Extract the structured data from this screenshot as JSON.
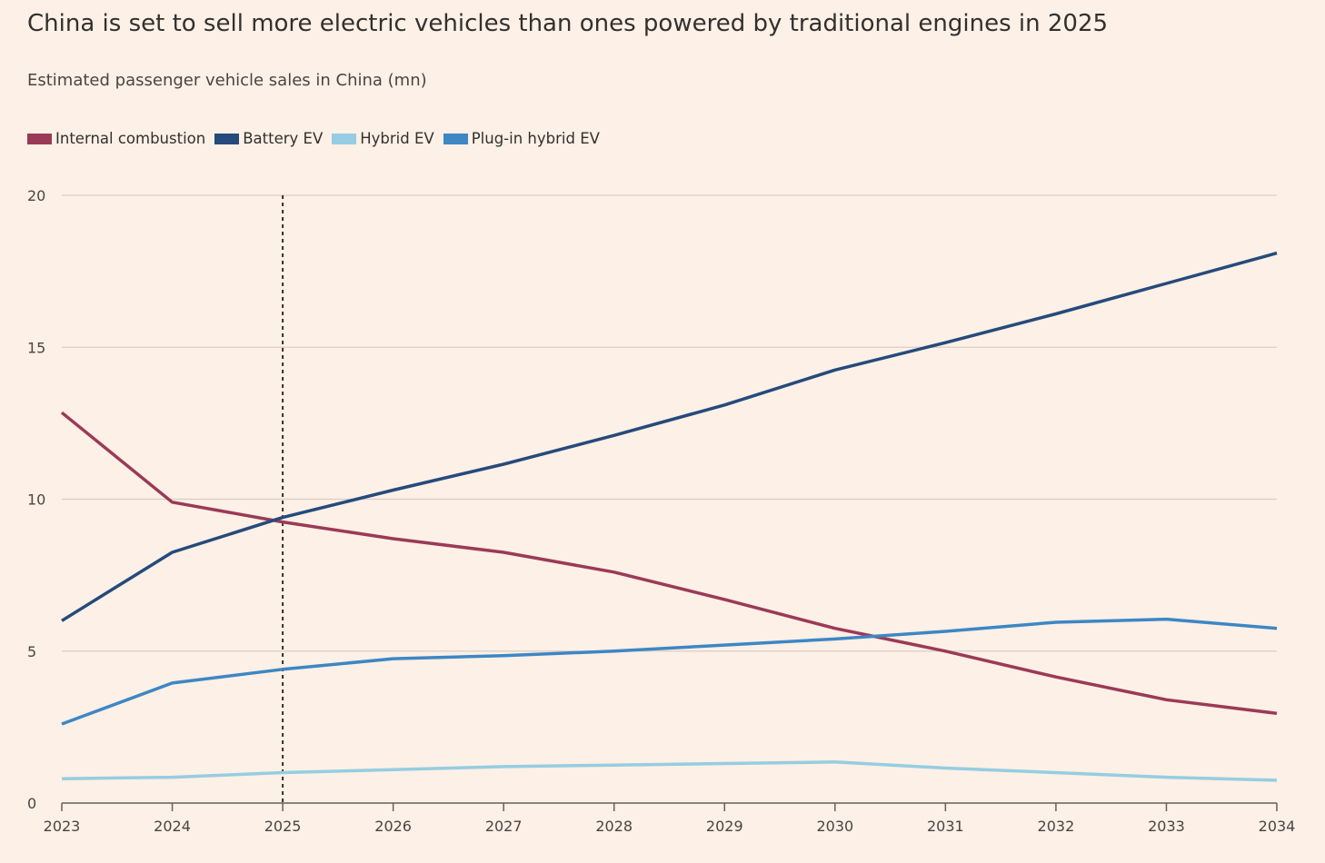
{
  "title": "China is set to sell more electric vehicles than ones powered by traditional engines in 2025",
  "subtitle": "Estimated passenger vehicle sales in China (mn)",
  "colors": {
    "background": "#fdf0e6",
    "gridline": "#d9cec5",
    "axis": "#66605c",
    "marker_line": "#33302e"
  },
  "chart_data": {
    "type": "line",
    "title": "China is set to sell more electric vehicles than ones powered by traditional engines in 2025",
    "subtitle": "Estimated passenger vehicle sales in China (mn)",
    "xlabel": "",
    "ylabel": "",
    "x": [
      2023,
      2024,
      2025,
      2026,
      2027,
      2028,
      2029,
      2030,
      2031,
      2032,
      2033,
      2034
    ],
    "x_tick_labels": [
      "2023",
      "2024",
      "2025",
      "2026",
      "2027",
      "2028",
      "2029",
      "2030",
      "2031",
      "2032",
      "2033",
      "2034"
    ],
    "ylim": [
      0,
      20
    ],
    "y_ticks": [
      0,
      5,
      10,
      15,
      20
    ],
    "y_tick_labels": [
      "0",
      "5",
      "10",
      "15",
      "20"
    ],
    "grid": true,
    "legend_position": "top-left",
    "vertical_marker_x": 2025,
    "series": [
      {
        "name": "Internal combustion",
        "color": "#9b3a56",
        "values": [
          12.85,
          9.9,
          9.25,
          8.7,
          8.25,
          7.6,
          6.7,
          5.75,
          5.0,
          4.15,
          3.4,
          2.95
        ]
      },
      {
        "name": "Battery EV",
        "color": "#264a7c",
        "values": [
          6.0,
          8.25,
          9.4,
          10.3,
          11.15,
          12.1,
          13.1,
          14.25,
          15.15,
          16.1,
          17.1,
          18.1
        ]
      },
      {
        "name": "Hybrid EV",
        "color": "#96cde2",
        "values": [
          0.8,
          0.85,
          1.0,
          1.1,
          1.2,
          1.25,
          1.3,
          1.35,
          1.15,
          1.0,
          0.85,
          0.75
        ]
      },
      {
        "name": "Plug-in hybrid EV",
        "color": "#3d87c4",
        "values": [
          2.6,
          3.95,
          4.4,
          4.75,
          4.85,
          5.0,
          5.2,
          5.4,
          5.65,
          5.95,
          6.05,
          5.75
        ]
      }
    ]
  }
}
